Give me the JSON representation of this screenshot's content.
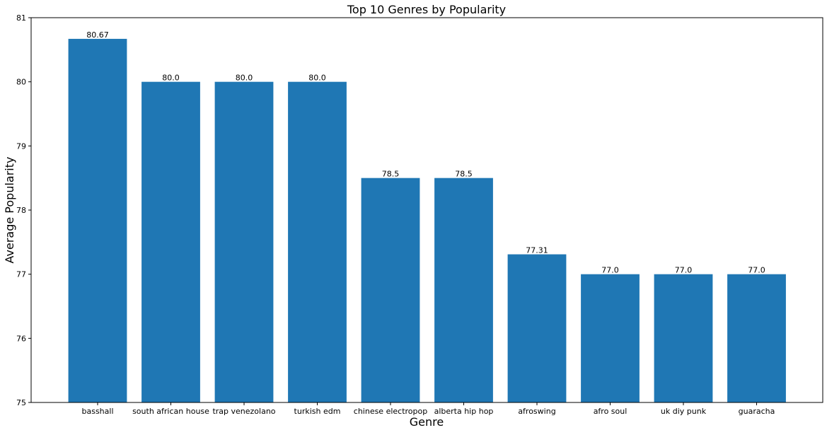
{
  "chart_data": {
    "type": "bar",
    "title": "Top 10 Genres by Popularity",
    "xlabel": "Genre",
    "ylabel": "Average Popularity",
    "categories": [
      "basshall",
      "south african house",
      "trap venezolano",
      "turkish edm",
      "chinese electropop",
      "alberta hip hop",
      "afroswing",
      "afro soul",
      "uk diy punk",
      "guaracha"
    ],
    "values": [
      80.67,
      80.0,
      80.0,
      80.0,
      78.5,
      78.5,
      77.31,
      77.0,
      77.0,
      77.0
    ],
    "value_labels": [
      "80.67",
      "80.0",
      "80.0",
      "80.0",
      "78.5",
      "78.5",
      "77.31",
      "77.0",
      "77.0",
      "77.0"
    ],
    "ylim": [
      75,
      81
    ],
    "yticks": [
      75,
      76,
      77,
      78,
      79,
      80,
      81
    ],
    "grid": false,
    "colors": {
      "bar": "#1f77b4",
      "axis": "#000000",
      "background": "#ffffff"
    }
  }
}
